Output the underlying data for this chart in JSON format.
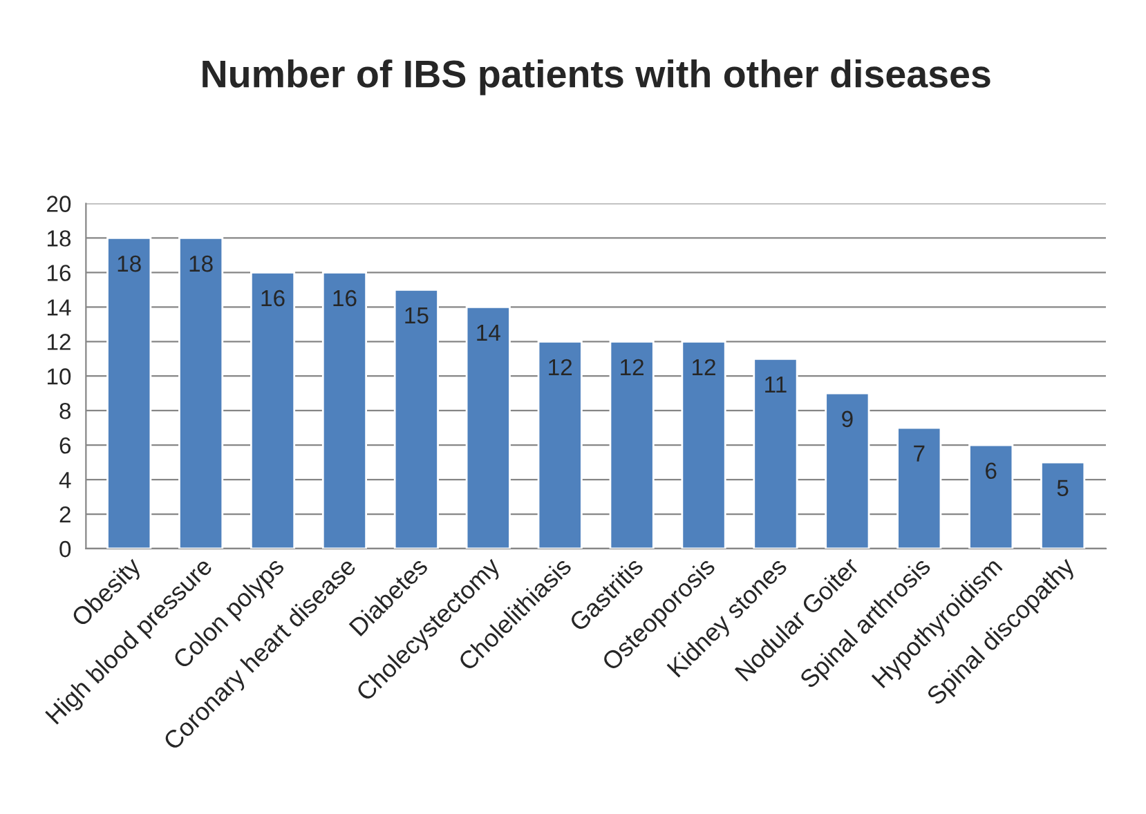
{
  "chart_data": {
    "type": "bar",
    "title": "Number of IBS patients with other diseases",
    "categories": [
      "Obesity",
      "High blood pressure",
      "Colon polyps",
      "Coronary heart disease",
      "Diabetes",
      "Cholecystectomy",
      "Cholelithiasis",
      "Gastritis",
      "Osteoporosis",
      "Kidney stones",
      "Nodular Goiter",
      "Spinal arthrosis",
      "Hypothyroidism",
      "Spinal discopathy"
    ],
    "values": [
      18,
      18,
      16,
      16,
      15,
      14,
      12,
      12,
      12,
      11,
      9,
      7,
      6,
      5
    ],
    "color": "#4f81bd",
    "ylim": [
      0,
      20
    ],
    "yticks": [
      0,
      2,
      4,
      6,
      8,
      10,
      12,
      14,
      16,
      18,
      20
    ],
    "grid": "y",
    "data_labels": true,
    "legend": false
  }
}
